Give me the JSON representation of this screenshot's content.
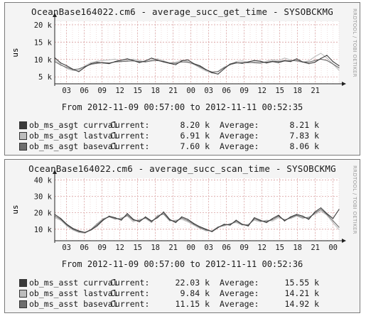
{
  "panels": [
    {
      "title": "OceanBase164022.cm6 - average_succ_get_time - SYSOBCKMG",
      "side_text": "RRDTOOL / TOBI OETIKER",
      "range": "From 2012-11-09 00:57:00 to 2012-11-11 00:52:35",
      "legend": [
        {
          "name": "ob_ms_asgt currval",
          "current_label": "Current:",
          "current": "8.20 k",
          "average_label": "Average:",
          "average": "8.21 k",
          "color": "#3a3a3a"
        },
        {
          "name": "ob_ms_asgt lastval",
          "current_label": "Current:",
          "current": "6.91 k",
          "average_label": "Average:",
          "average": "7.83 k",
          "color": "#bdbdbd"
        },
        {
          "name": "ob_ms_asgt baseval",
          "current_label": "Current:",
          "current": "7.60 k",
          "average_label": "Average:",
          "average": "8.06 k",
          "color": "#6e6e6e"
        }
      ]
    },
    {
      "title": "OceanBase164022.cm6 - average_succ_scan_time - SYSOBCKMG",
      "side_text": "RRDTOOL / TOBI OETIKER",
      "range": "From 2012-11-09 00:57:00 to 2012-11-11 00:52:36",
      "legend": [
        {
          "name": "ob_ms_asst currval",
          "current_label": "Current:",
          "current": "22.03 k",
          "average_label": "Average:",
          "average": "15.55 k",
          "color": "#3a3a3a"
        },
        {
          "name": "ob_ms_asst lastval",
          "current_label": "Current:",
          "current": "9.84 k",
          "average_label": "Average:",
          "average": "14.21 k",
          "color": "#bdbdbd"
        },
        {
          "name": "ob_ms_asst baseval",
          "current_label": "Current:",
          "current": "11.15 k",
          "average_label": "Average:",
          "average": "14.92 k",
          "color": "#6e6e6e"
        }
      ]
    }
  ],
  "chart_data": [
    {
      "type": "line",
      "title": "OceanBase164022.cm6 - average_succ_get_time - SYSOBCKMG",
      "ylabel": "us",
      "y_ticks": [
        "5 k",
        "10 k",
        "15 k",
        "20 k"
      ],
      "y_tick_values": [
        5000,
        10000,
        15000,
        20000
      ],
      "x_tick_labels": [
        "03",
        "06",
        "09",
        "12",
        "15",
        "18",
        "21",
        "00",
        "03",
        "06",
        "09",
        "12",
        "15",
        "18",
        "21"
      ],
      "ylim": [
        3000,
        21000
      ],
      "grid": true,
      "hour_offset": 1,
      "x_hours_span": 48,
      "series": [
        {
          "name": "ob_ms_asgt currval",
          "color": "#3a3a3a",
          "values": [
            10500,
            9000,
            8200,
            7200,
            6500,
            7800,
            8800,
            9200,
            9000,
            8800,
            9400,
            9800,
            10200,
            9700,
            9100,
            9600,
            10400,
            9800,
            9300,
            8900,
            8500,
            9600,
            9900,
            8800,
            8200,
            7100,
            6200,
            5800,
            7300,
            8700,
            9100,
            8900,
            9300,
            9700,
            9500,
            9000,
            9400,
            9100,
            9600,
            9400,
            10200,
            9300,
            8800,
            9200,
            10300,
            11200,
            9400,
            8200
          ]
        },
        {
          "name": "ob_ms_asgt lastval",
          "color": "#bdbdbd",
          "values": [
            9900,
            8600,
            7400,
            6800,
            6900,
            8200,
            9100,
            9500,
            9700,
            9900,
            10100,
            9400,
            9800,
            10100,
            9700,
            9300,
            9900,
            10200,
            9600,
            9000,
            9200,
            9800,
            9400,
            8600,
            7600,
            6700,
            6100,
            6600,
            7800,
            8600,
            9400,
            9600,
            9200,
            9000,
            8800,
            9500,
            9900,
            9700,
            10400,
            9900,
            9500,
            9200,
            9600,
            10800,
            11800,
            10400,
            8700,
            6900
          ]
        },
        {
          "name": "ob_ms_asgt baseval",
          "color": "#6e6e6e",
          "values": [
            9400,
            8400,
            7700,
            7100,
            7300,
            8000,
            8600,
            8900,
            9100,
            9000,
            9300,
            9400,
            9500,
            9600,
            9400,
            9300,
            9600,
            9700,
            9400,
            9000,
            8900,
            9300,
            9200,
            8700,
            7900,
            7000,
            6400,
            6500,
            7600,
            8500,
            9000,
            9100,
            9100,
            9200,
            9100,
            9200,
            9500,
            9400,
            9700,
            9600,
            9700,
            9300,
            9200,
            9700,
            10100,
            9700,
            8700,
            7600
          ]
        }
      ]
    },
    {
      "type": "line",
      "title": "OceanBase164022.cm6 - average_succ_scan_time - SYSOBCKMG",
      "ylabel": "us",
      "y_ticks": [
        "10 k",
        "20 k",
        "30 k",
        "40 k"
      ],
      "y_tick_values": [
        10000,
        20000,
        30000,
        40000
      ],
      "x_tick_labels": [
        "03",
        "06",
        "09",
        "12",
        "15",
        "18",
        "21",
        "00",
        "03",
        "06",
        "09",
        "12",
        "15",
        "18",
        "21",
        "00"
      ],
      "ylim": [
        3000,
        41000
      ],
      "grid": true,
      "hour_offset": 1,
      "x_hours_span": 48,
      "series": [
        {
          "name": "ob_ms_asst currval",
          "color": "#3a3a3a",
          "values": [
            19000,
            16500,
            13000,
            10500,
            9000,
            8000,
            9500,
            12000,
            15500,
            18000,
            17000,
            15500,
            19500,
            16000,
            14500,
            17500,
            15000,
            17000,
            20500,
            16000,
            14000,
            17500,
            16000,
            13500,
            11500,
            10000,
            8500,
            11000,
            13000,
            12500,
            15500,
            13000,
            12000,
            17000,
            15500,
            14000,
            16500,
            18500,
            15000,
            17500,
            19000,
            18000,
            16000,
            20500,
            23000,
            19500,
            16500,
            22000
          ]
        },
        {
          "name": "ob_ms_asst lastval",
          "color": "#bdbdbd",
          "values": [
            17000,
            15500,
            12000,
            9500,
            8000,
            7500,
            10000,
            13500,
            16500,
            17500,
            16000,
            17000,
            18000,
            14500,
            16000,
            16500,
            14000,
            18500,
            19000,
            15000,
            15500,
            16000,
            14500,
            12500,
            10500,
            9000,
            9000,
            11500,
            12000,
            13500,
            14000,
            12500,
            13000,
            15500,
            14500,
            15500,
            15000,
            17000,
            16000,
            16500,
            18000,
            16500,
            17500,
            19000,
            21000,
            18500,
            14000,
            9800
          ]
        },
        {
          "name": "ob_ms_asst baseval",
          "color": "#6e6e6e",
          "values": [
            18000,
            16000,
            12500,
            10000,
            8500,
            8000,
            9800,
            12800,
            16000,
            17500,
            16500,
            16200,
            18500,
            15500,
            15200,
            17000,
            14500,
            17800,
            19500,
            15500,
            14800,
            16800,
            15200,
            13000,
            11000,
            9500,
            8800,
            11200,
            12500,
            13000,
            14800,
            12800,
            12500,
            16200,
            15000,
            14800,
            15800,
            17800,
            15500,
            17000,
            18500,
            17200,
            16800,
            19800,
            22000,
            19000,
            15200,
            11200
          ]
        }
      ]
    }
  ]
}
